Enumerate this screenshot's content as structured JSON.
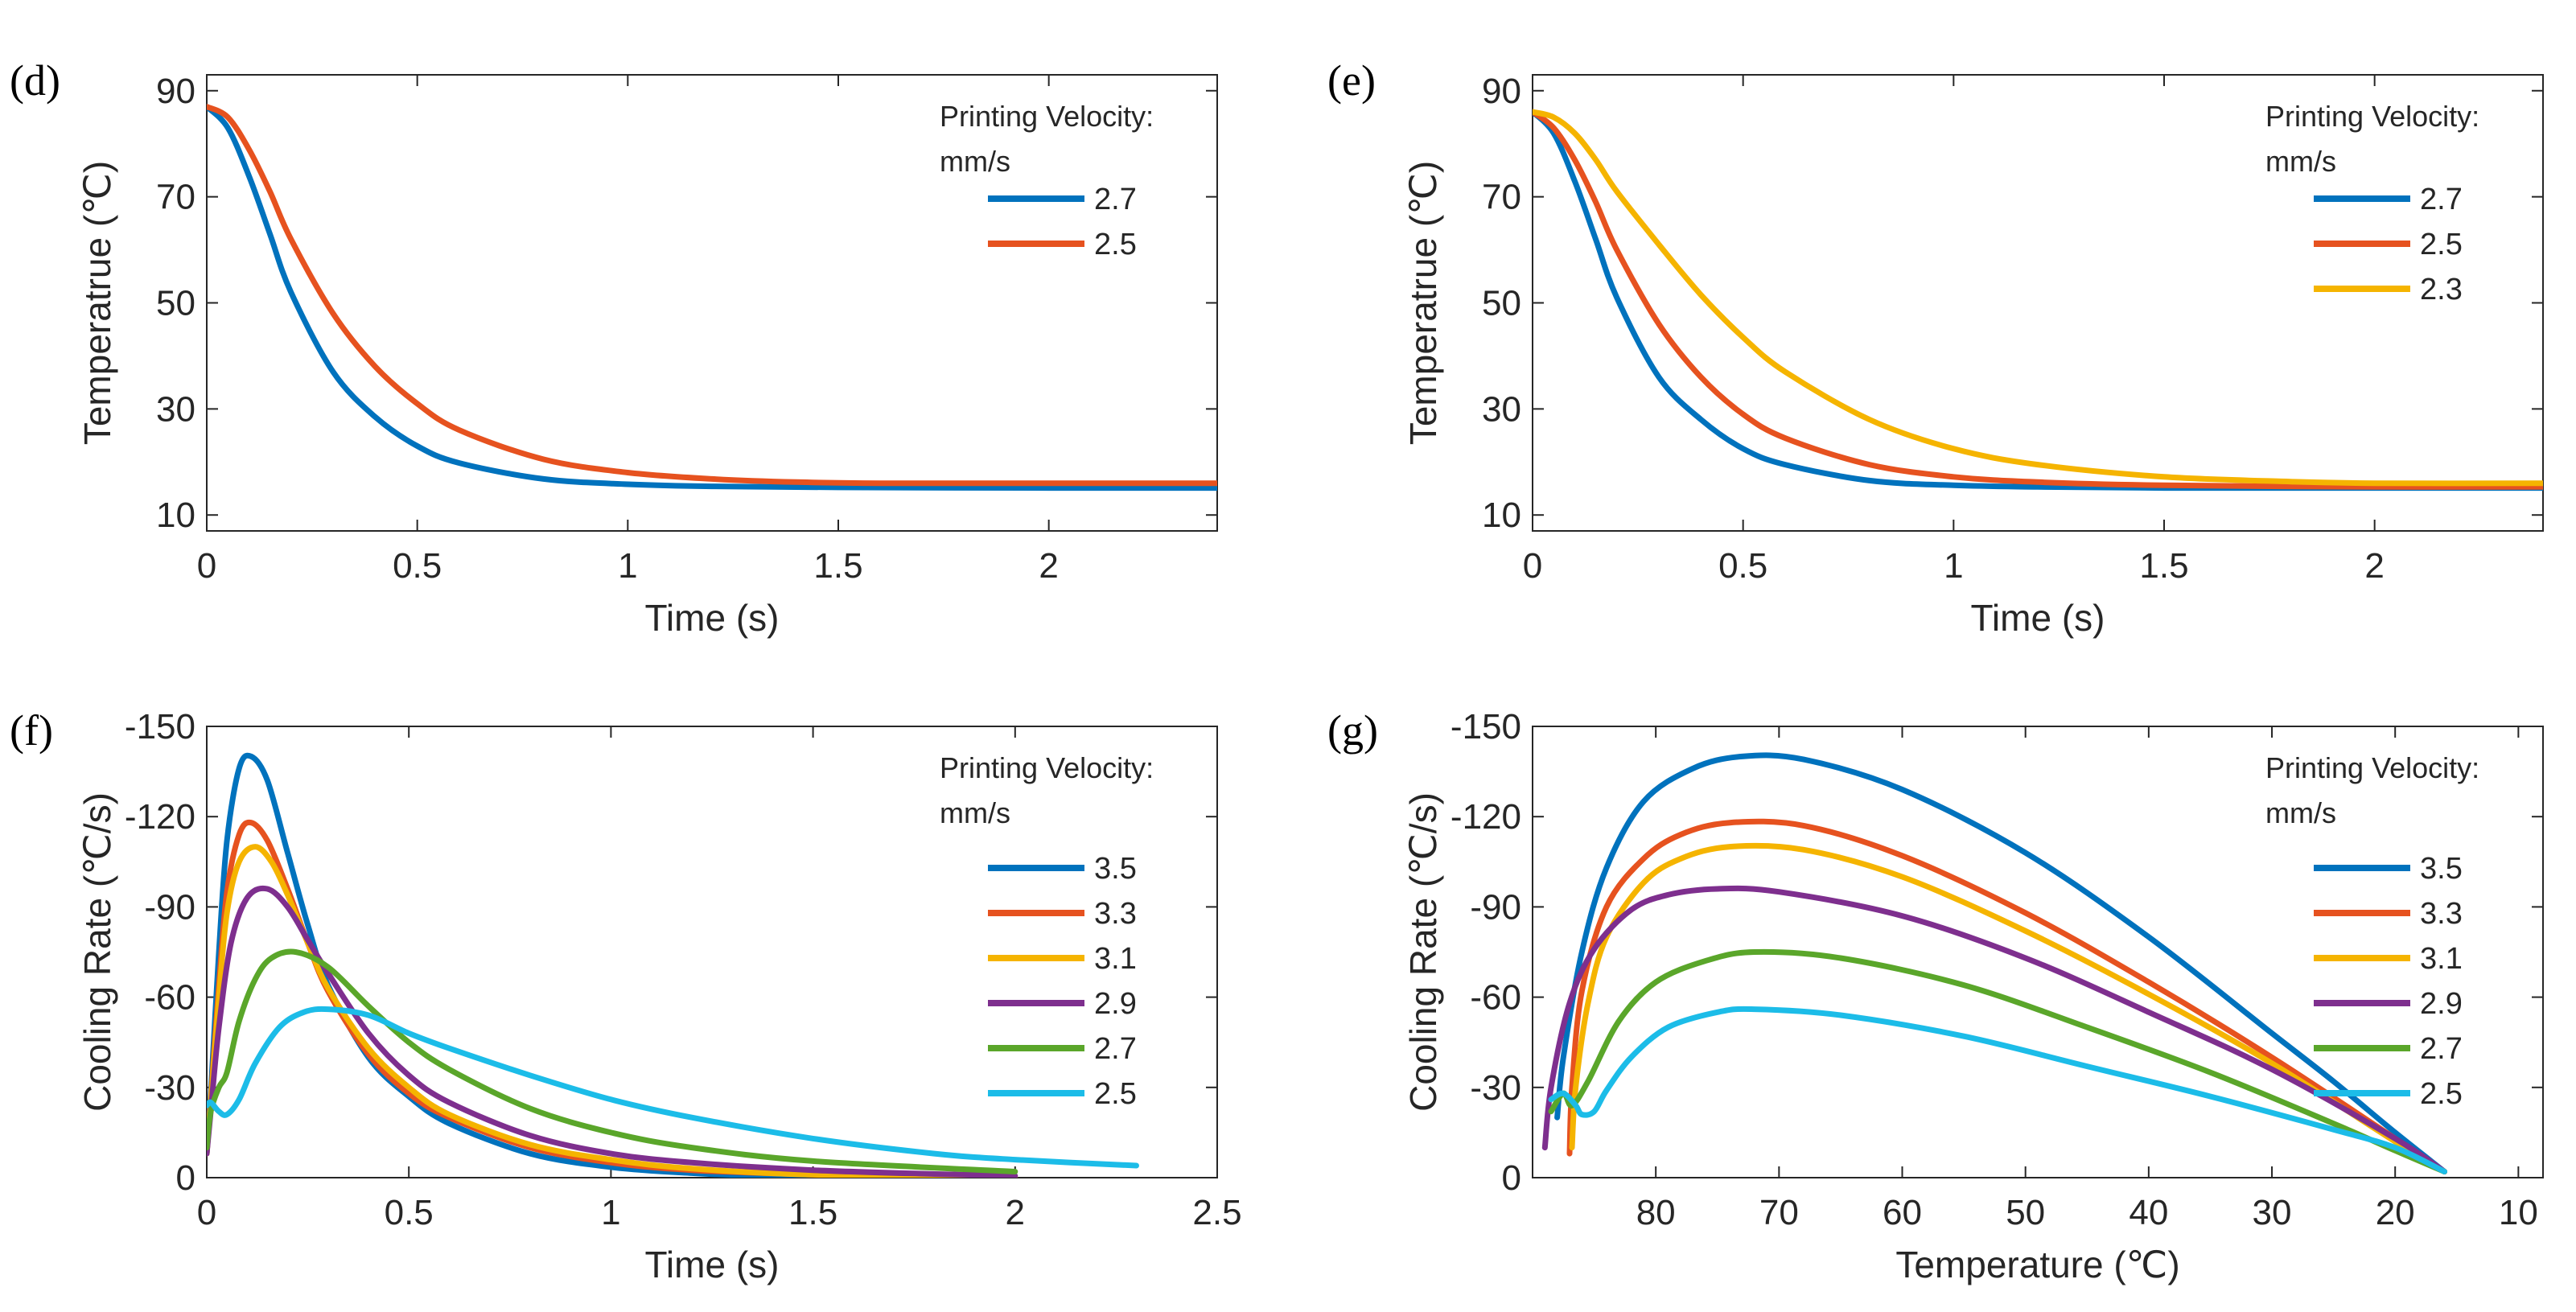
{
  "colors": {
    "blue": "#0072BD",
    "orange": "#E6521F",
    "yellow": "#F5B400",
    "purple": "#7E2F8E",
    "green": "#5AA62A",
    "cyan": "#1CBCE8"
  },
  "chart_data": [
    {
      "panel": "(d)",
      "type": "line",
      "xlabel": "Time (s)",
      "ylabel": "Temperatrue (℃)",
      "xlim": [
        0,
        2.4
      ],
      "ylim": [
        7,
        93
      ],
      "xticks": [
        0,
        0.5,
        1,
        1.5,
        2
      ],
      "xtick_labels": [
        "0",
        "0.5",
        "1",
        "1.5",
        "2"
      ],
      "yticks": [
        10,
        30,
        50,
        70,
        90
      ],
      "ytick_labels": [
        "10",
        "30",
        "50",
        "70",
        "90"
      ],
      "legend_title": [
        "Printing Velocity:",
        "mm/s"
      ],
      "legend_position": "top-right",
      "series": [
        {
          "name": "2.7",
          "color": "#0072BD",
          "x": [
            0,
            0.05,
            0.1,
            0.15,
            0.2,
            0.3,
            0.4,
            0.5,
            0.6,
            0.8,
            1.0,
            1.2,
            1.5,
            2.0,
            2.4
          ],
          "y": [
            87,
            83,
            74,
            63,
            52,
            37,
            28.5,
            23,
            19.8,
            16.8,
            15.8,
            15.4,
            15.2,
            15.1,
            15.1
          ]
        },
        {
          "name": "2.5",
          "color": "#E6521F",
          "x": [
            0,
            0.05,
            0.1,
            0.15,
            0.2,
            0.3,
            0.4,
            0.5,
            0.6,
            0.8,
            1.0,
            1.2,
            1.4,
            1.6,
            2.0,
            2.4
          ],
          "y": [
            87,
            85,
            79,
            71,
            62,
            48,
            38,
            31,
            26,
            20.5,
            18,
            16.8,
            16.2,
            16,
            16,
            16
          ]
        }
      ]
    },
    {
      "panel": "(e)",
      "type": "line",
      "xlabel": "Time (s)",
      "ylabel": "Temperatrue (℃)",
      "xlim": [
        0,
        2.4
      ],
      "ylim": [
        7,
        93
      ],
      "xticks": [
        0,
        0.5,
        1,
        1.5,
        2
      ],
      "xtick_labels": [
        "0",
        "0.5",
        "1",
        "1.5",
        "2"
      ],
      "yticks": [
        10,
        30,
        50,
        70,
        90
      ],
      "ytick_labels": [
        "10",
        "30",
        "50",
        "70",
        "90"
      ],
      "legend_title": [
        "Printing Velocity:",
        "mm/s"
      ],
      "legend_position": "top-right",
      "series": [
        {
          "name": "2.7",
          "color": "#0072BD",
          "x": [
            0,
            0.05,
            0.1,
            0.15,
            0.2,
            0.3,
            0.4,
            0.5,
            0.6,
            0.8,
            1.0,
            1.2,
            1.5,
            2.0,
            2.4
          ],
          "y": [
            86,
            82,
            73,
            62,
            51,
            36,
            28,
            22.5,
            19.5,
            16.5,
            15.6,
            15.3,
            15.1,
            15.1,
            15.1
          ]
        },
        {
          "name": "2.5",
          "color": "#E6521F",
          "x": [
            0,
            0.05,
            0.1,
            0.15,
            0.2,
            0.3,
            0.4,
            0.5,
            0.6,
            0.8,
            1.0,
            1.2,
            1.5,
            2.0,
            2.4
          ],
          "y": [
            86,
            83,
            77,
            69,
            60,
            46,
            36,
            29,
            24.5,
            19.5,
            17.2,
            16.2,
            15.6,
            15.3,
            15.3
          ]
        },
        {
          "name": "2.3",
          "color": "#F5B400",
          "x": [
            0,
            0.05,
            0.1,
            0.15,
            0.2,
            0.3,
            0.4,
            0.5,
            0.6,
            0.8,
            1.0,
            1.2,
            1.5,
            1.8,
            2.0,
            2.4
          ],
          "y": [
            86,
            85,
            82,
            77,
            71,
            61,
            51.5,
            43.5,
            37,
            28,
            22.5,
            19.5,
            17.2,
            16.3,
            16,
            16
          ]
        }
      ]
    },
    {
      "panel": "(f)",
      "type": "line",
      "xlabel": "Time (s)",
      "ylabel": "Cooling Rate (℃/s)",
      "xlim": [
        0,
        2.5
      ],
      "ylim": [
        0,
        -150
      ],
      "xticks": [
        0,
        0.5,
        1,
        1.5,
        2,
        2.5
      ],
      "xtick_labels": [
        "0",
        "0.5",
        "1",
        "1.5",
        "2",
        "2.5"
      ],
      "yticks": [
        0,
        -30,
        -60,
        -90,
        -120,
        -150
      ],
      "ytick_labels": [
        "0",
        "-30",
        "-60",
        "-90",
        "-120",
        "-150"
      ],
      "legend_title": [
        "Printing Velocity:",
        "mm/s"
      ],
      "legend_position": "top-right",
      "series": [
        {
          "name": "3.5",
          "color": "#0072BD",
          "x": [
            0,
            0.01,
            0.03,
            0.05,
            0.08,
            0.11,
            0.15,
            0.2,
            0.25,
            0.3,
            0.4,
            0.5,
            0.6,
            0.8,
            1.0,
            1.2,
            1.4,
            1.6
          ],
          "y": [
            -8,
            -28,
            -75,
            -112,
            -136,
            -140,
            -132,
            -108,
            -84,
            -64,
            -40,
            -27,
            -18,
            -8,
            -3.5,
            -1.5,
            -0.5,
            0
          ]
        },
        {
          "name": "3.3",
          "color": "#E6521F",
          "x": [
            0,
            0.01,
            0.03,
            0.05,
            0.08,
            0.11,
            0.15,
            0.2,
            0.25,
            0.3,
            0.4,
            0.5,
            0.6,
            0.8,
            1.0,
            1.2,
            1.5,
            1.8
          ],
          "y": [
            -8,
            -26,
            -64,
            -95,
            -114,
            -118,
            -112,
            -96,
            -78,
            -62,
            -41,
            -28,
            -20,
            -10,
            -5,
            -2.5,
            -1,
            0
          ]
        },
        {
          "name": "3.1",
          "color": "#F5B400",
          "x": [
            0,
            0.01,
            0.03,
            0.05,
            0.08,
            0.12,
            0.16,
            0.2,
            0.25,
            0.3,
            0.4,
            0.5,
            0.6,
            0.8,
            1.0,
            1.2,
            1.5,
            2.0
          ],
          "y": [
            -8,
            -25,
            -60,
            -88,
            -105,
            -110,
            -105,
            -94,
            -78,
            -63,
            -43,
            -30,
            -21,
            -11,
            -6,
            -3,
            -1,
            0
          ]
        },
        {
          "name": "2.9",
          "color": "#7E2F8E",
          "x": [
            0,
            0.01,
            0.03,
            0.06,
            0.1,
            0.15,
            0.2,
            0.25,
            0.3,
            0.4,
            0.5,
            0.6,
            0.8,
            1.0,
            1.2,
            1.5,
            1.8,
            2.0
          ],
          "y": [
            -8,
            -22,
            -50,
            -78,
            -93,
            -96,
            -90,
            -79,
            -68,
            -48,
            -34,
            -25,
            -14,
            -8,
            -5,
            -2.5,
            -1.2,
            -0.6
          ]
        },
        {
          "name": "2.7",
          "color": "#5AA62A",
          "x": [
            0,
            0.01,
            0.03,
            0.05,
            0.08,
            0.12,
            0.16,
            0.22,
            0.3,
            0.4,
            0.5,
            0.6,
            0.8,
            1.0,
            1.2,
            1.5,
            2.0
          ],
          "y": [
            -10,
            -22,
            -30,
            -35,
            -52,
            -66,
            -73,
            -75,
            -70,
            -57,
            -45,
            -36,
            -23,
            -15,
            -10,
            -5.5,
            -2
          ]
        },
        {
          "name": "2.5",
          "color": "#1CBCE8",
          "x": [
            0,
            0.01,
            0.03,
            0.05,
            0.08,
            0.12,
            0.18,
            0.24,
            0.3,
            0.4,
            0.5,
            0.6,
            0.8,
            1.0,
            1.2,
            1.5,
            1.8,
            2.0,
            2.3
          ],
          "y": [
            -24,
            -25,
            -22,
            -21,
            -26,
            -38,
            -50,
            -55,
            -56,
            -54,
            -48,
            -43,
            -34,
            -26,
            -20,
            -13,
            -8,
            -6,
            -4
          ]
        }
      ]
    },
    {
      "panel": "(g)",
      "type": "line",
      "xlabel": "Temperature (℃)",
      "ylabel": "Cooling Rate (℃/s)",
      "xlim": [
        90,
        8
      ],
      "ylim": [
        0,
        -150
      ],
      "xticks": [
        80,
        70,
        60,
        50,
        40,
        30,
        20,
        10
      ],
      "xtick_labels": [
        "80",
        "70",
        "60",
        "50",
        "40",
        "30",
        "20",
        "10"
      ],
      "yticks": [
        0,
        -30,
        -60,
        -90,
        -120,
        -150
      ],
      "ytick_labels": [
        "0",
        "-30",
        "-60",
        "-90",
        "-120",
        "-150"
      ],
      "legend_title": [
        "Printing Velocity:",
        "mm/s"
      ],
      "legend_position": "top-right",
      "series": [
        {
          "name": "3.5",
          "color": "#0072BD",
          "x": [
            88,
            87.5,
            86,
            84,
            81,
            77,
            73,
            68,
            60,
            50,
            40,
            30,
            25,
            20,
            16
          ],
          "y": [
            -20,
            -40,
            -75,
            -103,
            -125,
            -136,
            -140,
            -139,
            -129,
            -108,
            -80,
            -48,
            -32,
            -15,
            -2
          ]
        },
        {
          "name": "3.3",
          "color": "#E6521F",
          "x": [
            87,
            86.8,
            86,
            84,
            81,
            78,
            74,
            68,
            60,
            50,
            40,
            30,
            20,
            16
          ],
          "y": [
            -8,
            -30,
            -62,
            -90,
            -106,
            -114,
            -118,
            -117,
            -107,
            -88,
            -65,
            -40,
            -13,
            -2
          ]
        },
        {
          "name": "3.1",
          "color": "#F5B400",
          "x": [
            86.8,
            86.5,
            85.5,
            84,
            81,
            78,
            74,
            68,
            60,
            50,
            40,
            30,
            20,
            16
          ],
          "y": [
            -10,
            -30,
            -58,
            -80,
            -98,
            -106,
            -110,
            -109,
            -100,
            -82,
            -61,
            -38,
            -12,
            -2
          ]
        },
        {
          "name": "2.9",
          "color": "#7E2F8E",
          "x": [
            89,
            88.5,
            87,
            85,
            82,
            79,
            75,
            70,
            60,
            50,
            40,
            30,
            20,
            16
          ],
          "y": [
            -10,
            -30,
            -58,
            -76,
            -89,
            -94,
            -96,
            -95,
            -87,
            -73,
            -55,
            -36,
            -13,
            -2
          ]
        },
        {
          "name": "2.7",
          "color": "#5AA62A",
          "x": [
            88.5,
            87.5,
            86.8,
            85.5,
            83,
            80,
            76,
            72,
            65,
            55,
            45,
            35,
            25,
            20,
            16
          ],
          "y": [
            -22,
            -28,
            -24,
            -32,
            -52,
            -65,
            -72,
            -75,
            -73,
            -64,
            -50,
            -35,
            -18,
            -9,
            -2
          ]
        },
        {
          "name": "2.5",
          "color": "#1CBCE8",
          "x": [
            88.5,
            87.5,
            86.5,
            86,
            85,
            84,
            82,
            79,
            75,
            72,
            65,
            55,
            45,
            35,
            25,
            20,
            16
          ],
          "y": [
            -26,
            -28,
            -24,
            -21,
            -22,
            -29,
            -40,
            -50,
            -55,
            -56,
            -54,
            -47,
            -37,
            -27,
            -16,
            -10,
            -2
          ]
        }
      ]
    }
  ]
}
